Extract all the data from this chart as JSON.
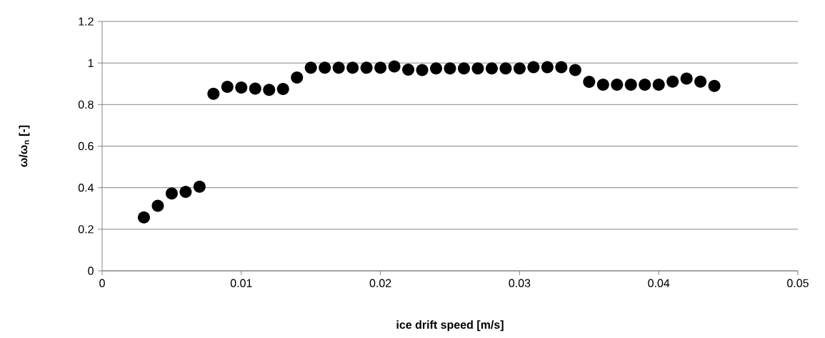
{
  "chart_data": {
    "type": "scatter",
    "xlabel": "ice drift speed [m/s]",
    "ylabel": "ω/ω$_{n}$ [-]",
    "x": [
      0.003,
      0.004,
      0.005,
      0.006,
      0.007,
      0.008,
      0.009,
      0.01,
      0.011,
      0.012,
      0.013,
      0.014,
      0.015,
      0.016,
      0.017,
      0.018,
      0.019,
      0.02,
      0.021,
      0.022,
      0.023,
      0.024,
      0.025,
      0.026,
      0.027,
      0.028,
      0.029,
      0.03,
      0.031,
      0.032,
      0.033,
      0.034,
      0.035,
      0.036,
      0.037,
      0.038,
      0.039,
      0.04,
      0.041,
      0.042,
      0.043,
      0.044
    ],
    "values": [
      0.257,
      0.313,
      0.372,
      0.38,
      0.405,
      0.852,
      0.885,
      0.882,
      0.877,
      0.871,
      0.875,
      0.93,
      0.977,
      0.977,
      0.977,
      0.977,
      0.977,
      0.977,
      0.983,
      0.968,
      0.966,
      0.974,
      0.974,
      0.974,
      0.974,
      0.974,
      0.974,
      0.974,
      0.98,
      0.98,
      0.98,
      0.966,
      0.909,
      0.896,
      0.896,
      0.896,
      0.896,
      0.896,
      0.91,
      0.925,
      0.91,
      0.89
    ],
    "color": "#000000",
    "marker": "circle",
    "grid": "y",
    "xlim": [
      0,
      0.05
    ],
    "xticks": [
      0,
      0.01,
      0.02,
      0.03,
      0.04,
      0.05
    ],
    "ylim": [
      0,
      1.2
    ],
    "yticks": [
      0,
      0.2,
      0.4,
      0.6,
      0.8,
      1,
      1.2
    ]
  }
}
